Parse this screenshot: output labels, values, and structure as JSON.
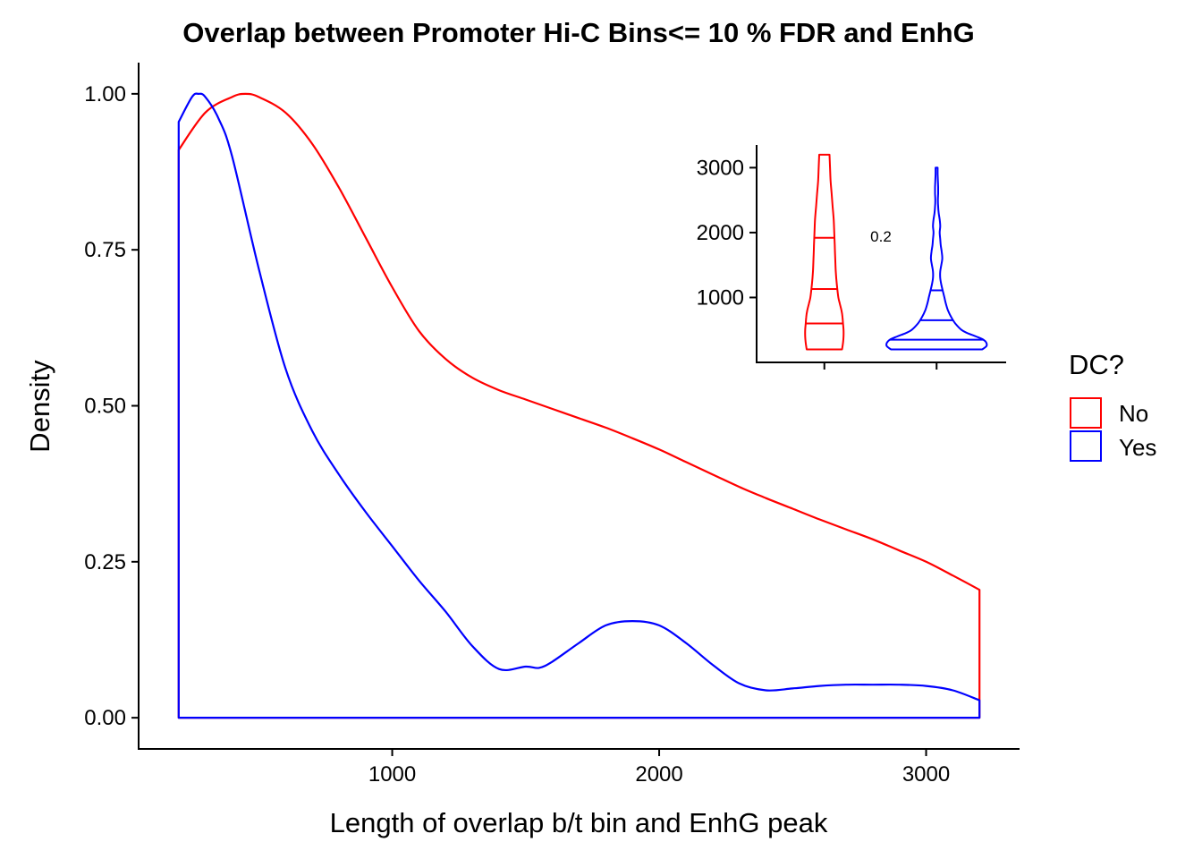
{
  "colors": {
    "no": "#ff0000",
    "yes": "#0000ff",
    "axis": "#000000",
    "background": "#ffffff"
  },
  "chart_data": [
    {
      "type": "line",
      "subtype": "density",
      "title": "Overlap between Promoter Hi-C Bins<= 10 % FDR and EnhG",
      "xlabel": "Length of overlap b/t bin and EnhG peak",
      "ylabel": "Density",
      "xlim": [
        50,
        3350
      ],
      "ylim": [
        -0.05,
        1.05
      ],
      "xticks": [
        1000,
        2000,
        3000
      ],
      "xtick_labels": [
        "1000",
        "2000",
        "3000"
      ],
      "yticks": [
        0,
        0.25,
        0.5,
        0.75,
        1.0
      ],
      "ytick_labels": [
        "0.00",
        "0.25",
        "0.50",
        "0.75",
        "1.00"
      ],
      "grid": false,
      "legend": {
        "title": "DC?",
        "position": "right",
        "entries": [
          "No",
          "Yes"
        ]
      },
      "series": [
        {
          "name": "No",
          "color": "#ff0000",
          "x": [
            200,
            300,
            400,
            450,
            500,
            600,
            700,
            800,
            900,
            1000,
            1100,
            1200,
            1300,
            1400,
            1500,
            1600,
            1700,
            1800,
            1900,
            2000,
            2100,
            2200,
            2300,
            2400,
            2500,
            2600,
            2700,
            2800,
            2900,
            3000,
            3100,
            3200
          ],
          "y": [
            0.91,
            0.97,
            0.995,
            1.0,
            0.995,
            0.97,
            0.92,
            0.85,
            0.77,
            0.69,
            0.62,
            0.575,
            0.545,
            0.525,
            0.51,
            0.495,
            0.48,
            0.465,
            0.448,
            0.43,
            0.41,
            0.39,
            0.37,
            0.352,
            0.335,
            0.318,
            0.302,
            0.286,
            0.268,
            0.25,
            0.228,
            0.205
          ]
        },
        {
          "name": "Yes",
          "color": "#0000ff",
          "x": [
            200,
            250,
            275,
            300,
            350,
            400,
            500,
            600,
            700,
            800,
            900,
            1000,
            1100,
            1200,
            1300,
            1400,
            1500,
            1550,
            1600,
            1700,
            1800,
            1900,
            2000,
            2100,
            2200,
            2300,
            2400,
            2500,
            2600,
            2700,
            2800,
            2900,
            3000,
            3100,
            3200
          ],
          "y": [
            0.955,
            0.995,
            1.0,
            0.995,
            0.96,
            0.9,
            0.72,
            0.56,
            0.46,
            0.39,
            0.33,
            0.275,
            0.22,
            0.17,
            0.115,
            0.078,
            0.082,
            0.08,
            0.09,
            0.12,
            0.148,
            0.155,
            0.148,
            0.12,
            0.085,
            0.055,
            0.044,
            0.047,
            0.051,
            0.053,
            0.053,
            0.053,
            0.051,
            0.044,
            0.028
          ]
        }
      ]
    },
    {
      "type": "violin",
      "yticks": [
        1000,
        2000,
        3000
      ],
      "ytick_labels": [
        "1000",
        "2000",
        "3000"
      ],
      "ylim": [
        0,
        3350
      ],
      "annotation": "0.2",
      "grid": false,
      "groups": [
        {
          "name": "No",
          "color": "#ff0000",
          "min": 200,
          "max": 3200,
          "quantiles": [
            600,
            1130,
            1920
          ],
          "y": [
            200,
            300,
            400,
            500,
            600,
            700,
            800,
            900,
            1000,
            1200,
            1400,
            1600,
            1800,
            2000,
            2200,
            2400,
            2600,
            2800,
            3000,
            3200
          ],
          "half_width": [
            0.34,
            0.36,
            0.37,
            0.37,
            0.36,
            0.35,
            0.33,
            0.3,
            0.27,
            0.24,
            0.22,
            0.21,
            0.2,
            0.19,
            0.18,
            0.16,
            0.14,
            0.12,
            0.11,
            0.1
          ]
        },
        {
          "name": "Yes",
          "color": "#0000ff",
          "min": 200,
          "max": 3000,
          "quantiles": [
            350,
            650,
            1110
          ],
          "y": [
            200,
            250,
            300,
            350,
            400,
            450,
            500,
            600,
            700,
            800,
            900,
            1000,
            1100,
            1200,
            1300,
            1400,
            1500,
            1600,
            1700,
            1800,
            1900,
            2000,
            2100,
            2200,
            2300,
            2400,
            2500,
            2600,
            2700,
            2800,
            2900,
            3000
          ],
          "half_width": [
            0.88,
            0.96,
            0.96,
            0.9,
            0.76,
            0.6,
            0.48,
            0.36,
            0.28,
            0.22,
            0.18,
            0.15,
            0.12,
            0.09,
            0.07,
            0.07,
            0.09,
            0.11,
            0.1,
            0.08,
            0.07,
            0.06,
            0.07,
            0.06,
            0.04,
            0.03,
            0.025,
            0.03,
            0.03,
            0.025,
            0.02,
            0.02
          ]
        }
      ]
    }
  ]
}
